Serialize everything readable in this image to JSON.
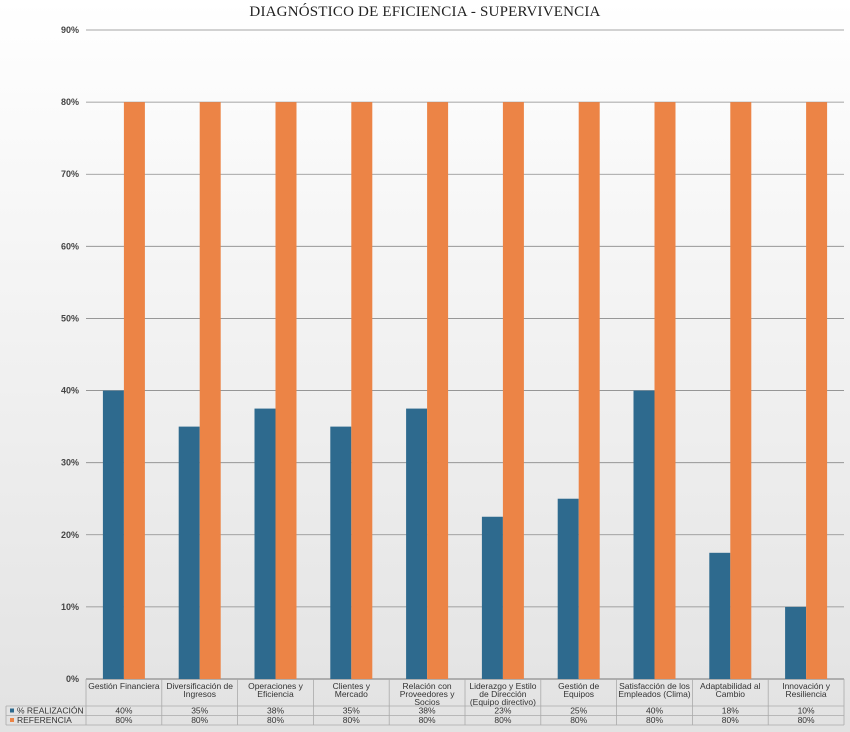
{
  "chart_data": {
    "type": "bar",
    "title": "DIAGNÓSTICO DE EFICIENCIA -  SUPERVIVENCIA",
    "ylim": [
      0,
      90
    ],
    "y_ticks": [
      "0%",
      "10%",
      "20%",
      "30%",
      "40%",
      "50%",
      "60%",
      "70%",
      "80%",
      "90%"
    ],
    "y_tick_values": [
      0,
      10,
      20,
      30,
      40,
      50,
      60,
      70,
      80,
      90
    ],
    "grid": true,
    "legend_placement": "data-table-left",
    "categories": [
      [
        "Gestión Financiera"
      ],
      [
        "Diversificación de",
        "Ingresos"
      ],
      [
        "Operaciones y",
        "Eficiencia"
      ],
      [
        "Clientes y",
        "Mercado"
      ],
      [
        "Relación con",
        "Proveedores y",
        "Socios"
      ],
      [
        "Liderazgo y Estilo",
        "de Dirección",
        "(Equipo directivo)"
      ],
      [
        "Gestión de",
        "Equipos"
      ],
      [
        "Satisfacción de los",
        "Empleados (Clima)"
      ],
      [
        "Adaptabilidad al",
        "Cambio"
      ],
      [
        "Innovación y",
        "Resiliencia"
      ]
    ],
    "series": [
      {
        "name": "% REALIZACIÓN",
        "color": "#2e6a8e",
        "values": [
          40,
          35,
          37.5,
          35,
          37.5,
          22.5,
          25,
          40,
          17.5,
          10
        ],
        "labels": [
          "40%",
          "35%",
          "38%",
          "35%",
          "38%",
          "23%",
          "25%",
          "40%",
          "18%",
          "10%"
        ]
      },
      {
        "name": "REFERENCIA",
        "color": "#ec8446",
        "values": [
          80,
          80,
          80,
          80,
          80,
          80,
          80,
          80,
          80,
          80
        ],
        "labels": [
          "80%",
          "80%",
          "80%",
          "80%",
          "80%",
          "80%",
          "80%",
          "80%",
          "80%",
          "80%"
        ]
      }
    ]
  }
}
